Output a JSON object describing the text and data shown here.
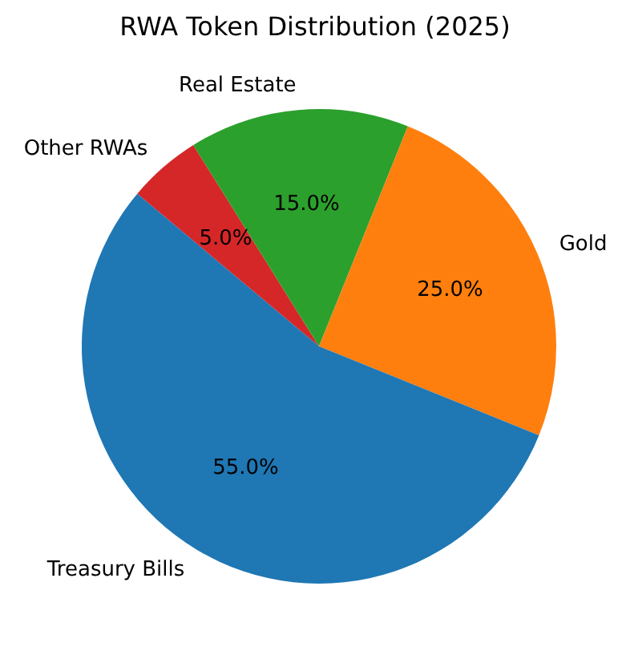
{
  "chart_data": {
    "type": "pie",
    "title": "RWA Token Distribution (2025)",
    "categories": [
      "Treasury Bills",
      "Gold",
      "Real Estate",
      "Other RWAs"
    ],
    "values": [
      55,
      25,
      15,
      5
    ],
    "colors": [
      "#1f77b4",
      "#ff7f0e",
      "#2ca02c",
      "#d62728"
    ],
    "value_labels": [
      "55.0%",
      "25.0%",
      "15.0%",
      "5.0%"
    ],
    "legend": false
  }
}
